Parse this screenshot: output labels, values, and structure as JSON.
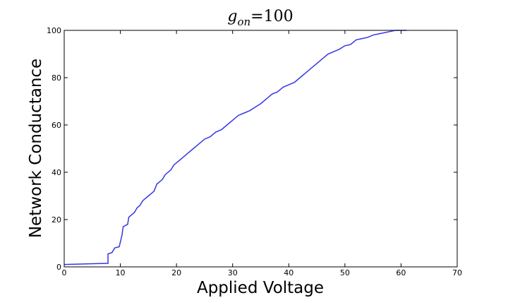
{
  "chart_data": {
    "type": "line",
    "title": {
      "symbol": "g",
      "subscript": "on",
      "rest": "=100"
    },
    "x_label": "Applied Voltage",
    "y_label": "Network Conductance",
    "xlim": [
      0,
      70
    ],
    "ylim": [
      0,
      100
    ],
    "xticks": [
      0,
      10,
      20,
      30,
      40,
      50,
      60,
      70
    ],
    "yticks": [
      0,
      20,
      40,
      60,
      80,
      100
    ],
    "series": [
      {
        "color": "#3535e8",
        "x": [
          0,
          7.8,
          7.8,
          8.5,
          9,
          9.8,
          10,
          10.3,
          10.5,
          11.3,
          11.5,
          12,
          12.5,
          13,
          13.5,
          14,
          14.5,
          15,
          15.5,
          16,
          16.5,
          17,
          17.5,
          18,
          19,
          19.5,
          20,
          21,
          22,
          23,
          24,
          25,
          26,
          27,
          28,
          29,
          30,
          31,
          32,
          33,
          34,
          35,
          36,
          37,
          38,
          39,
          40,
          41,
          42,
          43,
          44,
          45,
          46,
          47,
          48,
          49,
          50,
          51,
          52,
          53,
          54,
          55,
          56,
          57,
          58,
          59,
          60,
          61
        ],
        "values": [
          1,
          1.5,
          5.5,
          6,
          8,
          8.5,
          10.5,
          13.5,
          17,
          18,
          21,
          22,
          23,
          25,
          26,
          28,
          29,
          30,
          31,
          32,
          35,
          36,
          37,
          39,
          41,
          43,
          44,
          46,
          48,
          50,
          52,
          54,
          55,
          57,
          58,
          60,
          62,
          64,
          65,
          66,
          67.5,
          69,
          71,
          73,
          74,
          76,
          77,
          78,
          80,
          82,
          84,
          86,
          88,
          90,
          91,
          92,
          93.5,
          94,
          96,
          96.5,
          97,
          98,
          98.5,
          99,
          99.5,
          100,
          100,
          100
        ]
      }
    ]
  }
}
